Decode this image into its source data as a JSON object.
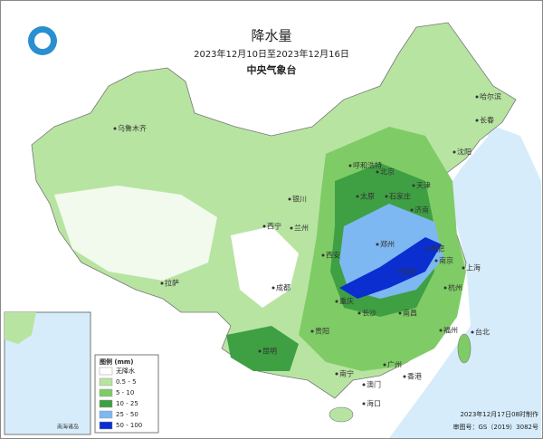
{
  "header": {
    "title": "降水量",
    "subtitle": "2023年12月10日至2023年12月16日",
    "org": "中央气象台"
  },
  "legend": {
    "title": "图例 (mm)",
    "items": [
      {
        "label": "无降水",
        "color": "#ffffff"
      },
      {
        "label": "0.5 - 5",
        "color": "#b8e4a2"
      },
      {
        "label": "5 - 10",
        "color": "#7fcc66"
      },
      {
        "label": "10 - 25",
        "color": "#3ea043"
      },
      {
        "label": "25 - 50",
        "color": "#7db8f2"
      },
      {
        "label": "50 - 100",
        "color": "#0a2ed0"
      }
    ]
  },
  "cities": [
    "乌鲁木齐",
    "哈尔滨",
    "长春",
    "沈阳",
    "呼和浩特",
    "北京",
    "天津",
    "银川",
    "太原",
    "石家庄",
    "济南",
    "西宁",
    "兰州",
    "郑州",
    "西安",
    "合肥",
    "南京",
    "上海",
    "拉萨",
    "成都",
    "武汉",
    "杭州",
    "重庆",
    "长沙",
    "南昌",
    "福州",
    "贵阳",
    "台北",
    "昆明",
    "南宁",
    "广州",
    "香港",
    "澳门",
    "海口"
  ],
  "inset": {
    "label": "南海诸岛"
  },
  "footer": {
    "made": "2023年12月17日08时制作",
    "approval": "审图号：GS（2019）3082号"
  }
}
